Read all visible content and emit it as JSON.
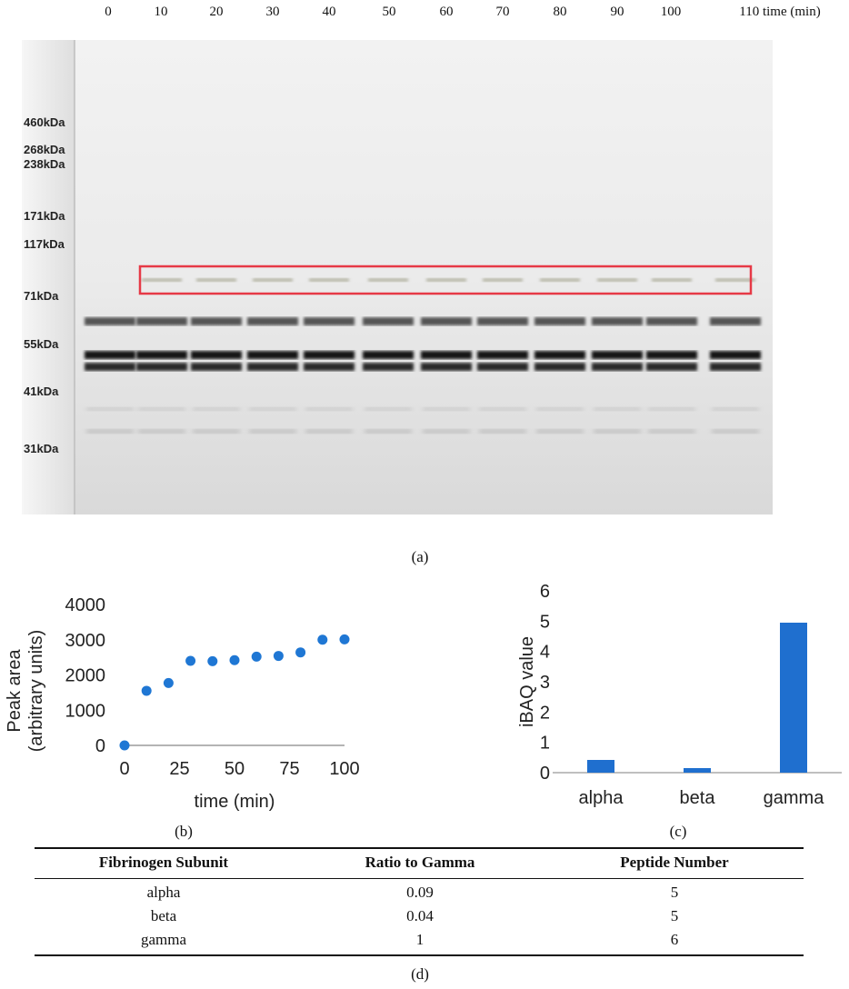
{
  "gel": {
    "lane_labels": [
      "0",
      "10",
      "20",
      "30",
      "40",
      "50",
      "60",
      "70",
      "80",
      "90",
      "100",
      "110 time (min)"
    ],
    "markers": [
      "460kDa",
      "268kDa",
      "238kDa",
      "171kDa",
      "117kDa",
      "71kDa",
      "55kDa",
      "41kDa",
      "31kDa"
    ],
    "highlight_color": "#e63946"
  },
  "captions": {
    "a": "(a)",
    "b": "(b)",
    "c": "(c)",
    "d": "(d)"
  },
  "chart_data": [
    {
      "type": "scatter",
      "x": [
        0,
        10,
        20,
        30,
        40,
        50,
        60,
        70,
        80,
        90,
        100
      ],
      "y": [
        0,
        1550,
        1770,
        2400,
        2390,
        2420,
        2520,
        2540,
        2640,
        3000,
        3010
      ],
      "xlabel": "time (min)",
      "ylabel": "Peak area",
      "ylabel2": "(arbitrary units)",
      "xlim": [
        0,
        100
      ],
      "ylim": [
        0,
        4000
      ],
      "xticks": [
        "0",
        "25",
        "50",
        "75",
        "100"
      ],
      "yticks": [
        "0",
        "1000",
        "2000",
        "3000",
        "4000"
      ],
      "color": "#1f77d4"
    },
    {
      "type": "bar",
      "categories": [
        "alpha",
        "beta",
        "gamma"
      ],
      "values": [
        0.42,
        0.15,
        4.95
      ],
      "ylabel": "iBAQ value",
      "ylim": [
        0,
        6
      ],
      "yticks": [
        "0",
        "1",
        "2",
        "3",
        "4",
        "5",
        "6"
      ],
      "color": "#1f6fcf"
    }
  ],
  "table": {
    "headers": [
      "Fibrinogen Subunit",
      "Ratio to Gamma",
      "Peptide Number"
    ],
    "rows": [
      [
        "alpha",
        "0.09",
        "5"
      ],
      [
        "beta",
        "0.04",
        "5"
      ],
      [
        "gamma",
        "1",
        "6"
      ]
    ]
  }
}
